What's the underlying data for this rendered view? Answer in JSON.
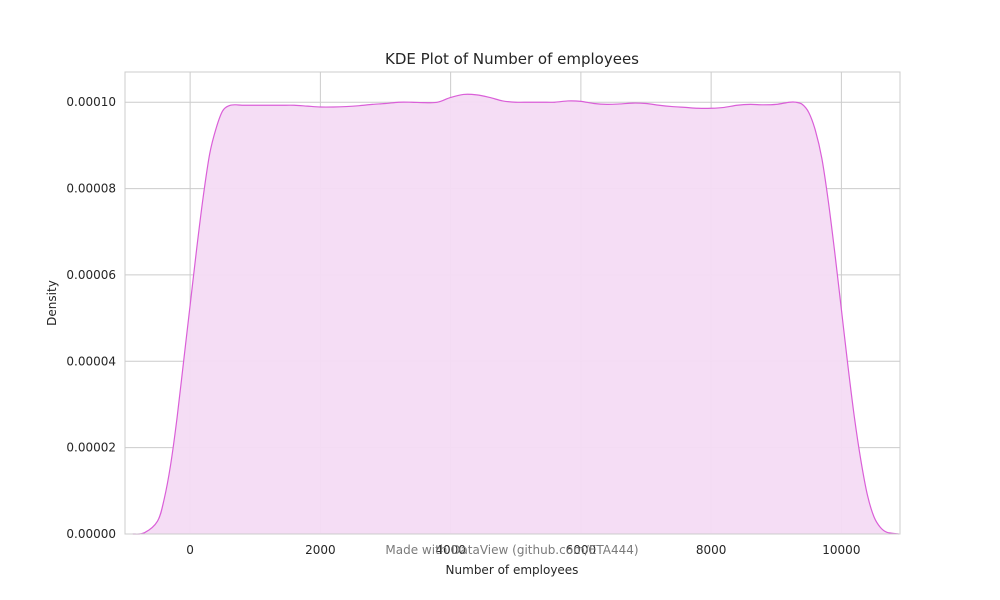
{
  "chart_data": {
    "type": "area",
    "title": "KDE Plot of Number of employees",
    "xlabel": "Number of employees",
    "ylabel": "Density",
    "xlim": [
      -1000,
      10900
    ],
    "ylim": [
      0,
      0.000107
    ],
    "xticks": [
      0,
      2000,
      4000,
      6000,
      8000,
      10000
    ],
    "xtick_labels": [
      "0",
      "2000",
      "4000",
      "6000",
      "8000",
      "10000"
    ],
    "yticks": [
      0,
      2e-05,
      4e-05,
      6e-05,
      8e-05,
      0.0001
    ],
    "ytick_labels": [
      "0.00000",
      "0.00002",
      "0.00004",
      "0.00006",
      "0.00008",
      "0.00010"
    ],
    "grid": true,
    "line_color": "#da5fd8",
    "fill_color": "#f4dbf4",
    "series": [
      {
        "x": [
          -880,
          -700,
          -500,
          -400,
          -300,
          -200,
          -100,
          0,
          100,
          200,
          300,
          400,
          500,
          600,
          700,
          800,
          1000,
          1200,
          1400,
          1600,
          1800,
          2000,
          2200,
          2400,
          2600,
          2800,
          3000,
          3200,
          3400,
          3600,
          3800,
          4000,
          4200,
          4400,
          4600,
          4800,
          5000,
          5200,
          5400,
          5600,
          5800,
          6000,
          6200,
          6400,
          6600,
          6800,
          7000,
          7200,
          7400,
          7600,
          7800,
          8000,
          8200,
          8400,
          8600,
          8800,
          9000,
          9200,
          9300,
          9400,
          9500,
          9600,
          9700,
          9800,
          9900,
          10000,
          10100,
          10200,
          10300,
          10400,
          10500,
          10600,
          10700,
          10880
        ],
        "y": [
          0.0,
          3e-07,
          3e-06,
          8e-06,
          1.6e-05,
          2.7e-05,
          4e-05,
          5.3e-05,
          6.6e-05,
          7.8e-05,
          8.8e-05,
          9.4e-05,
          9.8e-05,
          9.92e-05,
          9.94e-05,
          9.93e-05,
          9.93e-05,
          9.93e-05,
          9.93e-05,
          9.93e-05,
          9.91e-05,
          9.89e-05,
          9.89e-05,
          9.9e-05,
          9.92e-05,
          9.95e-05,
          9.97e-05,
          0.0001,
          0.0001,
          9.99e-05,
          0.0001,
          0.0001011,
          0.0001018,
          0.0001017,
          0.0001011,
          0.0001003,
          0.0001,
          0.0001,
          0.0001,
          0.0001,
          0.0001003,
          0.0001002,
          9.97e-05,
          9.95e-05,
          9.96e-05,
          9.98e-05,
          9.97e-05,
          9.93e-05,
          9.9e-05,
          9.88e-05,
          9.86e-05,
          9.86e-05,
          9.88e-05,
          9.93e-05,
          9.95e-05,
          9.94e-05,
          9.95e-05,
          0.0001,
          0.0001,
          9.95e-05,
          9.76e-05,
          9.35e-05,
          8.7e-05,
          7.7e-05,
          6.5e-05,
          5.2e-05,
          3.9e-05,
          2.7e-05,
          1.7e-05,
          9e-06,
          4e-06,
          1.5e-06,
          4e-07,
          0.0
        ]
      }
    ]
  },
  "watermark": "Made with DataView (github.com/ETA444)"
}
